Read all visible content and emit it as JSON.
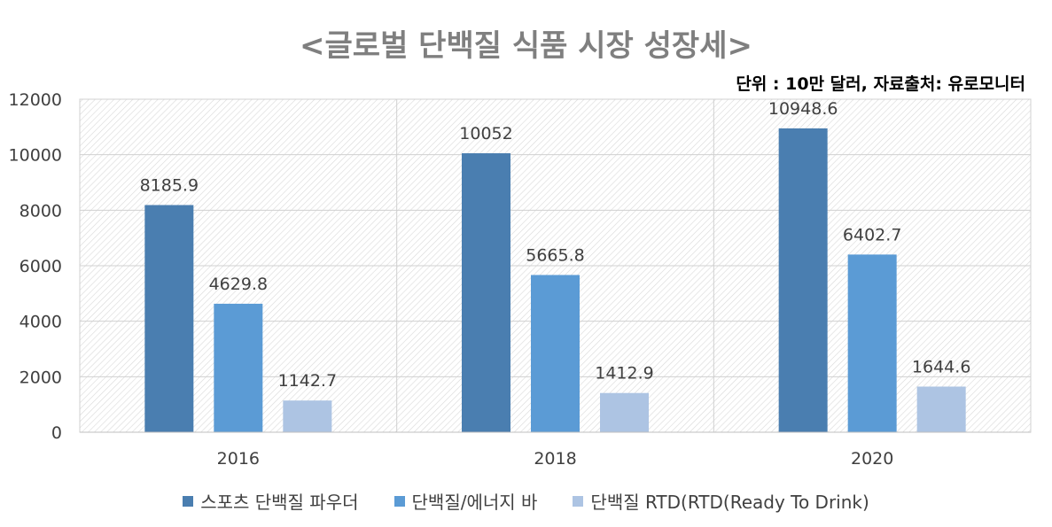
{
  "chart_data": {
    "type": "bar",
    "title": "<글로벌 단백질 식품 시장 성장세>",
    "subtitle": "단위 : 10만 달러, 자료출처: 유로모니터",
    "categories": [
      "2016",
      "2018",
      "2020"
    ],
    "series": [
      {
        "name": "스포츠 단백질 파우더",
        "values": [
          8185.9,
          10052,
          10948.6
        ],
        "color": "#4a7eb0"
      },
      {
        "name": "단백질/에너지 바",
        "values": [
          4629.8,
          5665.8,
          6402.7
        ],
        "color": "#5b9bd5"
      },
      {
        "name": "단백질 RTD(RTD(Ready To Drink)",
        "values": [
          1142.7,
          1412.9,
          1644.6
        ],
        "color": "#adc4e3"
      }
    ],
    "data_labels": [
      [
        "8185.9",
        "10052",
        "10948.6"
      ],
      [
        "4629.8",
        "5665.8",
        "6402.7"
      ],
      [
        "1142.7",
        "1412.9",
        "1644.6"
      ]
    ],
    "yticks": [
      "0",
      "2000",
      "4000",
      "6000",
      "8000",
      "10000",
      "12000"
    ],
    "ylim": [
      0,
      12000
    ],
    "grid": true,
    "legend_position": "bottom"
  }
}
